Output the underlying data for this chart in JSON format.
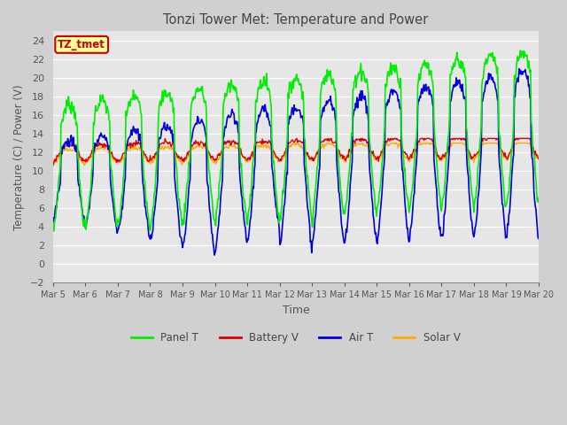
{
  "title": "Tonzi Tower Met: Temperature and Power",
  "xlabel": "Time",
  "ylabel": "Temperature (C) / Power (V)",
  "ylim": [
    -2,
    25
  ],
  "yticks": [
    -2,
    0,
    2,
    4,
    6,
    8,
    10,
    12,
    14,
    16,
    18,
    20,
    22,
    24
  ],
  "xtick_labels": [
    "Mar 5",
    "Mar 6",
    "Mar 7",
    "Mar 8",
    "Mar 9",
    "Mar 10",
    "Mar 11",
    "Mar 12",
    "Mar 13",
    "Mar 14",
    "Mar 15",
    "Mar 16",
    "Mar 17",
    "Mar 18",
    "Mar 19",
    "Mar 20"
  ],
  "legend_labels": [
    "Panel T",
    "Battery V",
    "Air T",
    "Solar V"
  ],
  "legend_colors": [
    "#00ee00",
    "#dd0000",
    "#0000dd",
    "#ffaa00"
  ],
  "annotation_text": "TZ_tmet",
  "annotation_color": "#cc0000",
  "annotation_bg": "#ffff99",
  "plot_bg": "#e8e8e8",
  "grid_color": "#ffffff",
  "n_days": 15,
  "n_points": 720
}
